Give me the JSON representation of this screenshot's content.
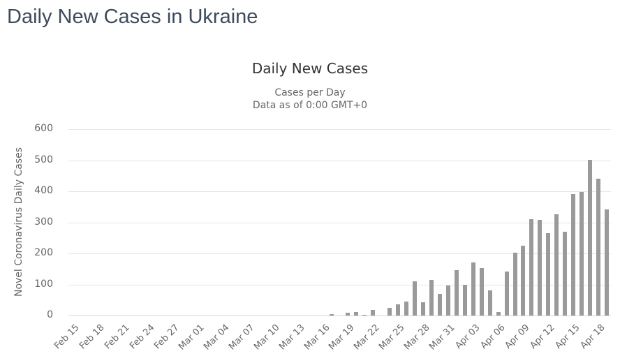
{
  "page": {
    "title": "Daily New Cases in Ukraine"
  },
  "chart": {
    "title": "Daily New Cases",
    "subtitle_line1": "Cases per Day",
    "subtitle_line2": "Data as of 0:00 GMT+0",
    "y_axis_title": "Novel Coronavirus Daily Cases"
  },
  "colors": {
    "page_title": "#3d4b5c",
    "chart_title": "#333333",
    "subtitle": "#666666",
    "axis_label": "#666666",
    "bar": "#9a9a9a",
    "gridline": "#e6e6e6",
    "axis_line": "#ccd6eb",
    "background": "#ffffff"
  },
  "chart_data": {
    "type": "bar",
    "title": "Daily New Cases",
    "subtitle": "Cases per Day — Data as of 0:00 GMT+0",
    "xlabel": "",
    "ylabel": "Novel Coronavirus Daily Cases",
    "ylim": [
      0,
      600
    ],
    "ytick_step": 100,
    "xtick_label_every": 3,
    "grid": true,
    "legend": false,
    "categories": [
      "Feb 15",
      "Feb 16",
      "Feb 17",
      "Feb 18",
      "Feb 19",
      "Feb 20",
      "Feb 21",
      "Feb 22",
      "Feb 23",
      "Feb 24",
      "Feb 25",
      "Feb 26",
      "Feb 27",
      "Feb 28",
      "Feb 29",
      "Mar 01",
      "Mar 02",
      "Mar 03",
      "Mar 04",
      "Mar 05",
      "Mar 06",
      "Mar 07",
      "Mar 08",
      "Mar 09",
      "Mar 10",
      "Mar 11",
      "Mar 12",
      "Mar 13",
      "Mar 14",
      "Mar 15",
      "Mar 16",
      "Mar 17",
      "Mar 18",
      "Mar 19",
      "Mar 20",
      "Mar 21",
      "Mar 22",
      "Mar 23",
      "Mar 24",
      "Mar 25",
      "Mar 26",
      "Mar 27",
      "Mar 28",
      "Mar 29",
      "Mar 30",
      "Mar 31",
      "Apr 01",
      "Apr 02",
      "Apr 03",
      "Apr 04",
      "Apr 05",
      "Apr 06",
      "Apr 07",
      "Apr 08",
      "Apr 09",
      "Apr 10",
      "Apr 11",
      "Apr 12",
      "Apr 13",
      "Apr 14",
      "Apr 15",
      "Apr 16",
      "Apr 17",
      "Apr 18",
      "Apr 19"
    ],
    "values": [
      0,
      0,
      0,
      0,
      0,
      0,
      0,
      0,
      0,
      0,
      0,
      0,
      0,
      0,
      0,
      0,
      0,
      0,
      0,
      0,
      0,
      0,
      0,
      0,
      0,
      0,
      0,
      0,
      0,
      0,
      0,
      4,
      0,
      8,
      11,
      3,
      19,
      0,
      24,
      35,
      46,
      111,
      42,
      115,
      70,
      96,
      145,
      99,
      171,
      152,
      81,
      11,
      141,
      203,
      224,
      311,
      308,
      266,
      325,
      269,
      390,
      397,
      501,
      441,
      342
    ]
  }
}
